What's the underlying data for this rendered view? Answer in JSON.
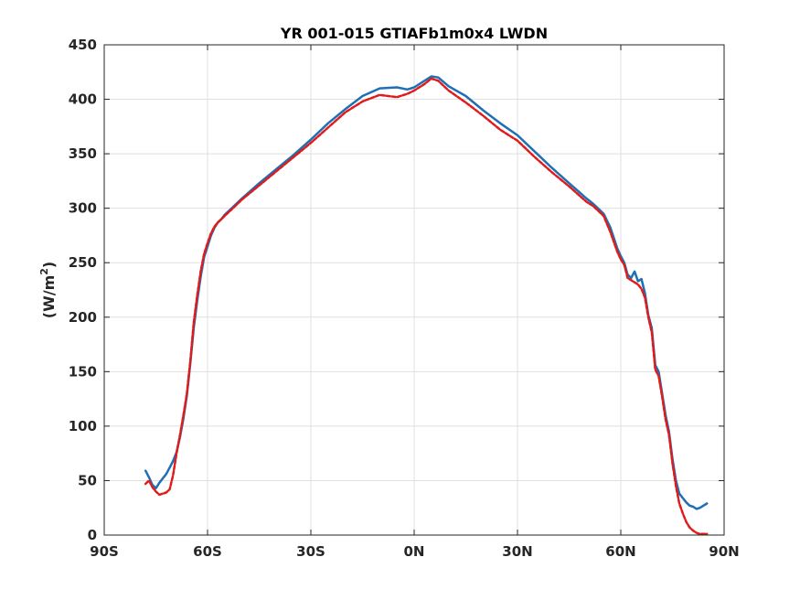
{
  "chart_data": {
    "type": "line",
    "title": "YR 001-015 GTIAFb1m0x4 LWDN",
    "xlabel": "",
    "ylabel_base": "(W/m",
    "ylabel_sup": "2",
    "ylabel_close": ")",
    "xlim": [
      -90,
      90
    ],
    "ylim": [
      0,
      450
    ],
    "grid": true,
    "legend": "none",
    "x_ticks": [
      {
        "value": -90,
        "label": "90S"
      },
      {
        "value": -60,
        "label": "60S"
      },
      {
        "value": -30,
        "label": "30S"
      },
      {
        "value": 0,
        "label": "0N"
      },
      {
        "value": 30,
        "label": "30N"
      },
      {
        "value": 60,
        "label": "60N"
      },
      {
        "value": 90,
        "label": "90N"
      }
    ],
    "y_ticks": [
      {
        "value": 0,
        "label": "0"
      },
      {
        "value": 50,
        "label": "50"
      },
      {
        "value": 100,
        "label": "100"
      },
      {
        "value": 150,
        "label": "150"
      },
      {
        "value": 200,
        "label": "200"
      },
      {
        "value": 250,
        "label": "250"
      },
      {
        "value": 300,
        "label": "300"
      },
      {
        "value": 350,
        "label": "350"
      },
      {
        "value": 400,
        "label": "400"
      },
      {
        "value": 450,
        "label": "450"
      }
    ],
    "series": [
      {
        "color": "#1f6fb4",
        "style": "solid",
        "x": [
          -78,
          -77,
          -76,
          -75,
          -74,
          -73,
          -72,
          -71,
          -70,
          -69,
          -68,
          -67,
          -66,
          -65,
          -64,
          -63,
          -62,
          -61,
          -60,
          -59,
          -58,
          -57,
          -56,
          -55,
          -53,
          -50,
          -45,
          -40,
          -35,
          -30,
          -25,
          -20,
          -15,
          -10,
          -5,
          -2,
          0,
          3,
          5,
          7,
          10,
          15,
          20,
          25,
          30,
          35,
          40,
          45,
          50,
          52,
          55,
          57,
          59,
          60,
          61,
          62,
          63,
          64,
          65,
          66,
          67,
          68,
          69,
          70,
          71,
          72,
          73,
          74,
          75,
          76,
          77,
          78,
          79,
          80,
          81,
          82,
          83,
          84,
          85
        ],
        "y": [
          59,
          53,
          46,
          43,
          48,
          52,
          56,
          62,
          68,
          76,
          90,
          107,
          128,
          158,
          190,
          215,
          237,
          255,
          265,
          275,
          282,
          287,
          290,
          294,
          300,
          309,
          323,
          336,
          349,
          363,
          378,
          391,
          403,
          410,
          411,
          409,
          411,
          417,
          421,
          420,
          412,
          403,
          390,
          378,
          367,
          352,
          337,
          323,
          309,
          304,
          295,
          282,
          263,
          256,
          250,
          239,
          236,
          242,
          233,
          235,
          222,
          202,
          190,
          156,
          150,
          130,
          110,
          95,
          70,
          50,
          38,
          34,
          30,
          27,
          26,
          24,
          25,
          27,
          29
        ]
      },
      {
        "color": "#e01b1b",
        "style": "dashed",
        "x": [
          -78,
          -77,
          -76,
          -75,
          -74,
          -73,
          -72,
          -71,
          -70,
          -69,
          -68,
          -67,
          -66,
          -65,
          -64,
          -63,
          -62,
          -61,
          -60,
          -59,
          -58,
          -57,
          -56,
          -55,
          -53,
          -50,
          -45,
          -40,
          -35,
          -30,
          -25,
          -20,
          -15,
          -10,
          -5,
          -2,
          0,
          3,
          5,
          7,
          10,
          15,
          20,
          25,
          30,
          35,
          40,
          45,
          50,
          52,
          55,
          57,
          59,
          60,
          61,
          62,
          63,
          64,
          65,
          66,
          67,
          68,
          69,
          70,
          71,
          72,
          73,
          74,
          75,
          76,
          77,
          78,
          79,
          80,
          81,
          82,
          83,
          84,
          85
        ],
        "y": [
          47,
          50,
          44,
          40,
          37,
          38,
          39,
          42,
          55,
          75,
          92,
          110,
          130,
          160,
          195,
          220,
          242,
          258,
          268,
          277,
          283,
          287,
          290,
          293,
          299,
          308,
          321,
          334,
          347,
          360,
          374,
          388,
          398,
          404,
          402,
          405,
          408,
          414,
          419,
          417,
          408,
          397,
          385,
          372,
          362,
          347,
          333,
          320,
          306,
          302,
          293,
          278,
          260,
          253,
          248,
          236,
          234,
          232,
          230,
          226,
          218,
          200,
          186,
          152,
          146,
          127,
          106,
          92,
          66,
          45,
          29,
          20,
          12,
          7,
          4,
          2,
          1,
          1,
          1
        ]
      }
    ]
  }
}
